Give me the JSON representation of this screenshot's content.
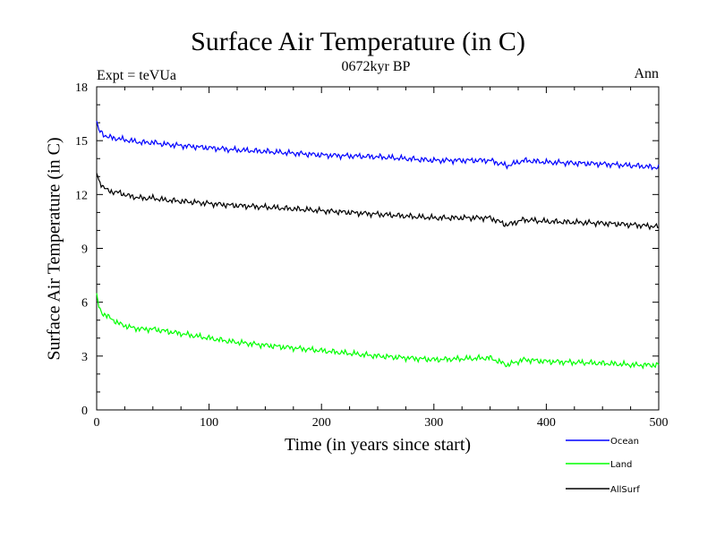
{
  "chart_data": {
    "type": "line",
    "title": "Surface Air Temperature (in C)",
    "subtitle": "0672kyr BP",
    "annotation_left": "Expt = teVUa",
    "annotation_right": "Ann",
    "xlabel": "Time (in years since start)",
    "ylabel": "Surface Air Temperature (in C)",
    "xlim": [
      0,
      500
    ],
    "ylim": [
      0,
      18
    ],
    "xticks": [
      0,
      100,
      200,
      300,
      400,
      500
    ],
    "yticks": [
      0,
      3,
      6,
      9,
      12,
      15,
      18
    ],
    "legend_position": "bottom-right, outside plot",
    "series": [
      {
        "name": "Ocean",
        "color": "#0000ff",
        "x": [
          0,
          2,
          5,
          10,
          20,
          30,
          40,
          50,
          60,
          80,
          100,
          120,
          150,
          200,
          250,
          300,
          350,
          365,
          380,
          400,
          450,
          480,
          500
        ],
        "y": [
          16.1,
          15.6,
          15.4,
          15.2,
          15.1,
          15.0,
          14.9,
          14.9,
          14.8,
          14.7,
          14.6,
          14.5,
          14.4,
          14.2,
          14.1,
          13.9,
          13.9,
          13.6,
          13.9,
          13.8,
          13.7,
          13.6,
          13.5
        ]
      },
      {
        "name": "Land",
        "color": "#00ff00",
        "x": [
          0,
          2,
          5,
          10,
          20,
          30,
          40,
          50,
          60,
          80,
          100,
          120,
          150,
          200,
          250,
          300,
          350,
          365,
          380,
          400,
          450,
          480,
          500
        ],
        "y": [
          6.5,
          5.7,
          5.4,
          5.2,
          4.8,
          4.6,
          4.5,
          4.5,
          4.4,
          4.2,
          4.0,
          3.8,
          3.6,
          3.3,
          3.0,
          2.8,
          2.9,
          2.5,
          2.8,
          2.7,
          2.6,
          2.5,
          2.5
        ]
      },
      {
        "name": "AllSurf",
        "color": "#000000",
        "x": [
          0,
          2,
          5,
          10,
          20,
          30,
          40,
          50,
          60,
          80,
          100,
          120,
          150,
          200,
          250,
          300,
          350,
          365,
          380,
          400,
          450,
          480,
          500
        ],
        "y": [
          13.2,
          12.8,
          12.5,
          12.2,
          12.1,
          11.9,
          11.8,
          11.8,
          11.7,
          11.6,
          11.5,
          11.4,
          11.3,
          11.1,
          10.9,
          10.7,
          10.7,
          10.3,
          10.6,
          10.5,
          10.4,
          10.3,
          10.2
        ]
      }
    ]
  }
}
